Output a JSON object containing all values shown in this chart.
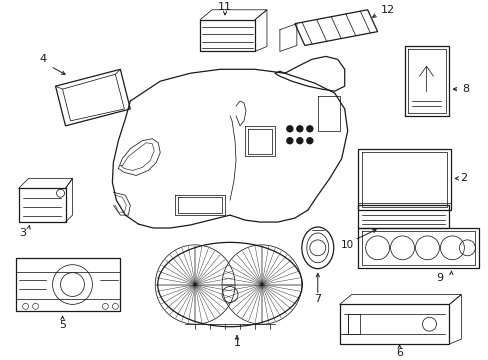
{
  "background_color": "#ffffff",
  "line_color": "#1a1a1a",
  "figsize": [
    4.89,
    3.6
  ],
  "dpi": 100,
  "lw_main": 0.9,
  "lw_thin": 0.55,
  "lw_label": 0.7
}
